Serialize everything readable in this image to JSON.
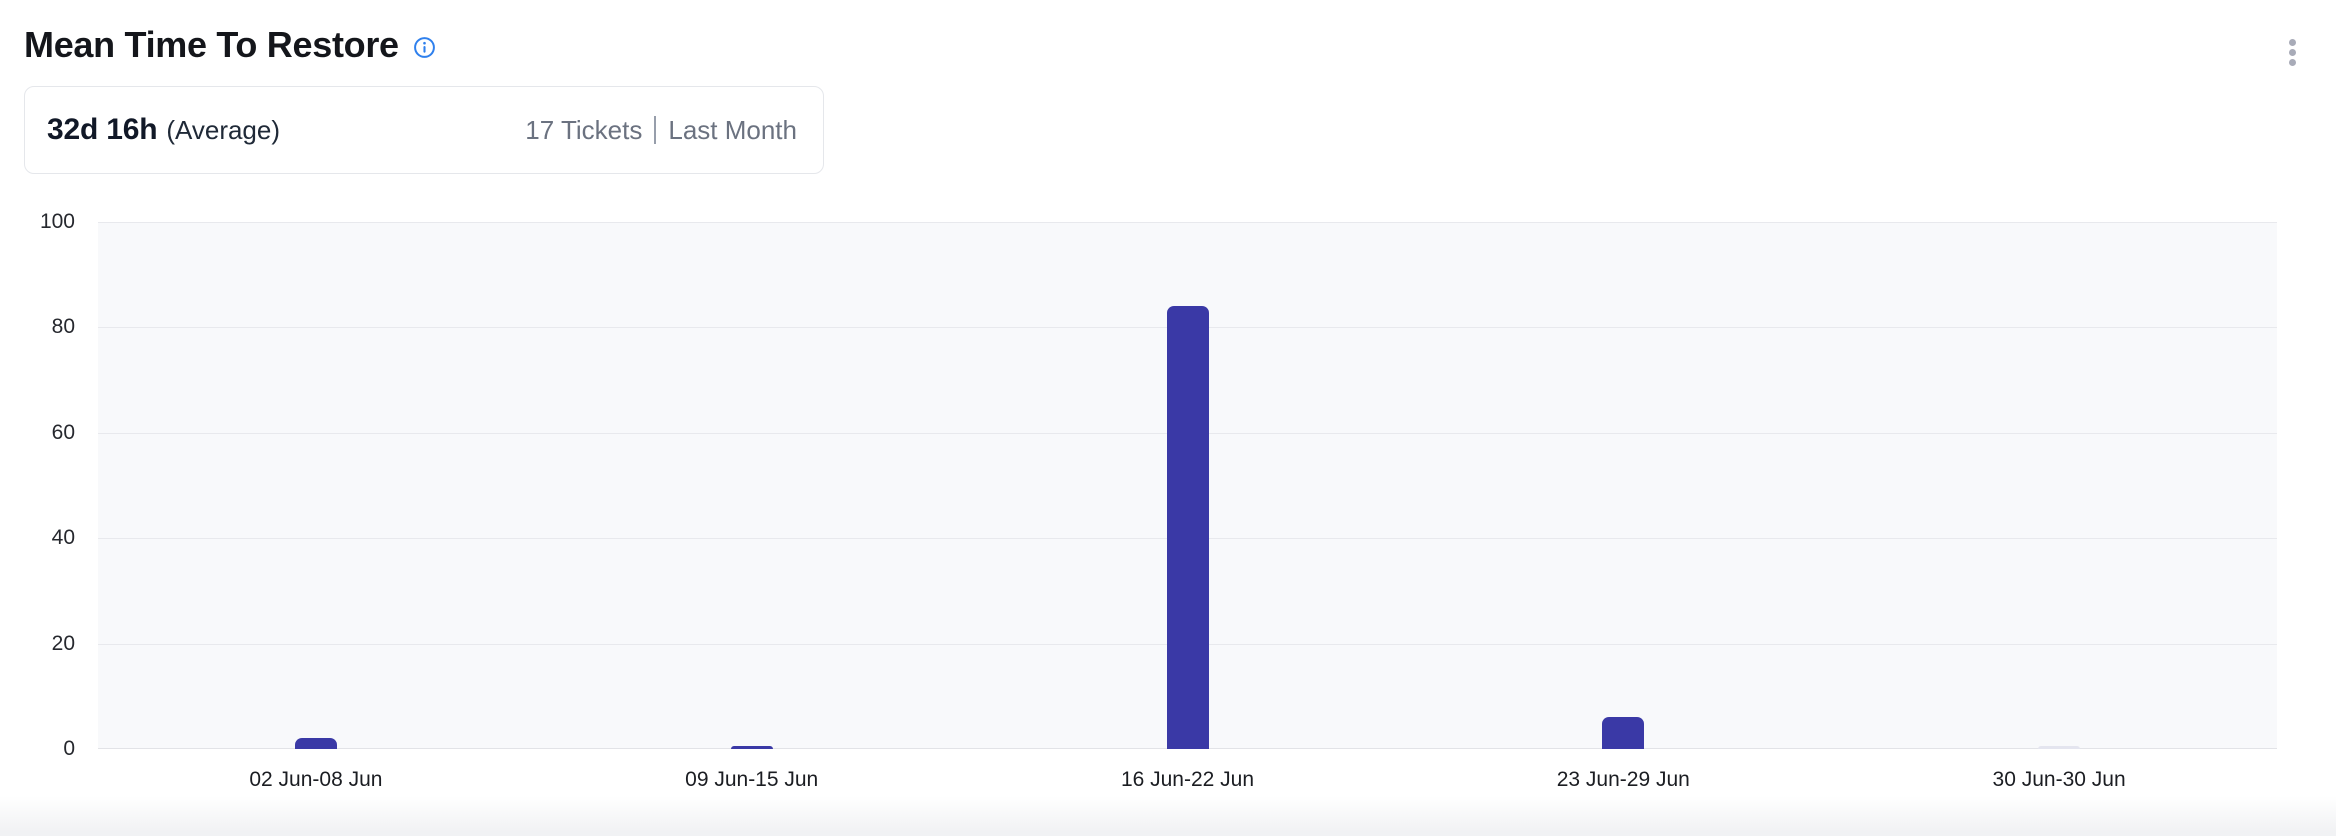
{
  "header": {
    "title": "Mean Time To Restore"
  },
  "summary": {
    "value": "32d 16h",
    "value_label": "(Average)",
    "tickets": "17 Tickets",
    "separator": "|",
    "period": "Last Month"
  },
  "colors": {
    "bar": "#3A39A6",
    "bar_zero": "#E4E5EF",
    "plot_bg": "#F8F9FB",
    "gridline": "#E8E9ED",
    "baseline": "#E2E3E7",
    "info_icon": "#2F80ED",
    "menu_dots": "#A8ABB8",
    "card_border": "#E5E7EB",
    "muted_text": "#6B7280"
  },
  "chart_data": {
    "type": "bar",
    "title": "Mean Time To Restore",
    "categories": [
      "02 Jun-08 Jun",
      "09 Jun-15 Jun",
      "16 Jun-22 Jun",
      "23 Jun-29 Jun",
      "30 Jun-30 Jun"
    ],
    "values": [
      2,
      0.5,
      84,
      6,
      0
    ],
    "xlabel": "",
    "ylabel": "",
    "ylim": [
      0,
      100
    ],
    "yticks": [
      0,
      20,
      40,
      60,
      80,
      100
    ],
    "grid": "horizontal",
    "legend": "none"
  }
}
